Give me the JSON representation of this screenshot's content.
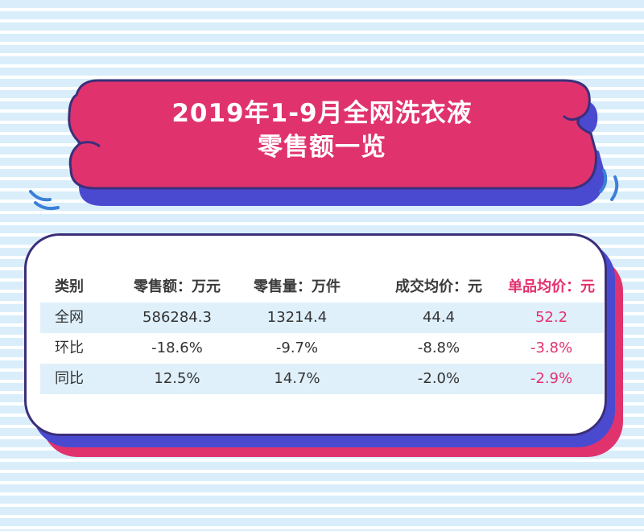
{
  "banner": {
    "title_line1": "2019年1-9月全网洗衣液",
    "title_line2": "零售额一览"
  },
  "table": {
    "headers": [
      "类别",
      "零售额：万元",
      "零售量：万件",
      "成交均价：元",
      "单品均价：元"
    ],
    "rows": [
      [
        "全网",
        "586284.3",
        "13214.4",
        "44.4",
        "52.2"
      ],
      [
        "环比",
        "-18.6%",
        "-9.7%",
        "-8.8%",
        "-3.8%"
      ],
      [
        "同比",
        "12.5%",
        "14.7%",
        "-2.0%",
        "-2.9%"
      ]
    ]
  },
  "colors": {
    "banner_pink": "#e0336e",
    "shadow_blue": "#4a4ad0",
    "outline": "#3b2f7a",
    "highlight_text": "#e4306f",
    "row_shade": "#dff0fb"
  }
}
